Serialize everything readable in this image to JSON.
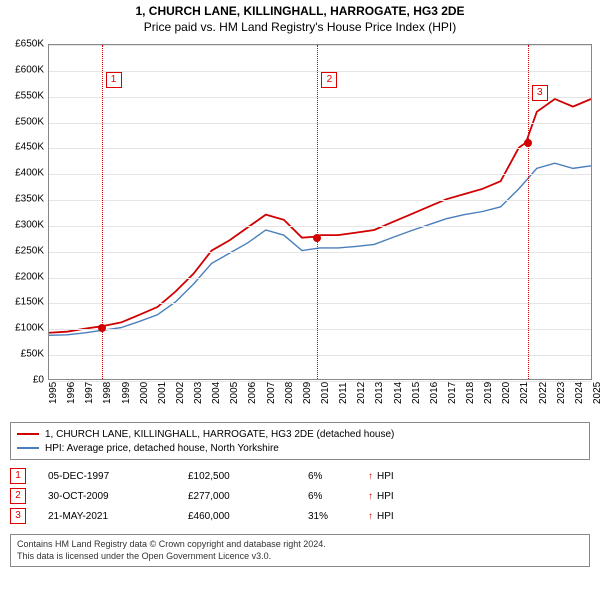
{
  "titles": {
    "main": "1, CHURCH LANE, KILLINGHALL, HARROGATE, HG3 2DE",
    "sub": "Price paid vs. HM Land Registry's House Price Index (HPI)"
  },
  "chart": {
    "type": "line",
    "background_color": "#ffffff",
    "grid_color": "#e5e5e5",
    "border_color": "#888888",
    "x": {
      "min": 1995,
      "max": 2025,
      "ticks": [
        1995,
        1996,
        1997,
        1998,
        1999,
        2000,
        2001,
        2002,
        2003,
        2004,
        2005,
        2006,
        2007,
        2008,
        2009,
        2010,
        2011,
        2012,
        2013,
        2014,
        2015,
        2016,
        2017,
        2018,
        2019,
        2020,
        2021,
        2022,
        2023,
        2024,
        2025
      ]
    },
    "y": {
      "min": 0,
      "max": 650000,
      "tick_step": 50000,
      "tick_labels": [
        "£0",
        "£50K",
        "£100K",
        "£150K",
        "£200K",
        "£250K",
        "£300K",
        "£350K",
        "£400K",
        "£450K",
        "£500K",
        "£550K",
        "£600K",
        "£650K"
      ]
    },
    "series": [
      {
        "name": "1, CHURCH LANE, KILLINGHALL, HARROGATE, HG3 2DE (detached house)",
        "color": "#d00000",
        "line_width": 1.8,
        "points": [
          [
            1995,
            90000
          ],
          [
            1996,
            92000
          ],
          [
            1997,
            98000
          ],
          [
            1997.9,
            102500
          ],
          [
            1999,
            110000
          ],
          [
            2000,
            125000
          ],
          [
            2001,
            140000
          ],
          [
            2002,
            170000
          ],
          [
            2003,
            205000
          ],
          [
            2004,
            250000
          ],
          [
            2005,
            270000
          ],
          [
            2006,
            295000
          ],
          [
            2007,
            320000
          ],
          [
            2008,
            310000
          ],
          [
            2009,
            275000
          ],
          [
            2009.8,
            277000
          ],
          [
            2010,
            280000
          ],
          [
            2011,
            280000
          ],
          [
            2012,
            285000
          ],
          [
            2013,
            290000
          ],
          [
            2014,
            305000
          ],
          [
            2015,
            320000
          ],
          [
            2016,
            335000
          ],
          [
            2017,
            350000
          ],
          [
            2018,
            360000
          ],
          [
            2019,
            370000
          ],
          [
            2020,
            385000
          ],
          [
            2021,
            450000
          ],
          [
            2021.4,
            460000
          ],
          [
            2022,
            520000
          ],
          [
            2023,
            545000
          ],
          [
            2024,
            530000
          ],
          [
            2025,
            545000
          ]
        ]
      },
      {
        "name": "HPI: Average price, detached house, North Yorkshire",
        "color": "#4a7ebb",
        "line_width": 1.4,
        "points": [
          [
            1995,
            85000
          ],
          [
            1996,
            86000
          ],
          [
            1997,
            90000
          ],
          [
            1998,
            95000
          ],
          [
            1999,
            100000
          ],
          [
            2000,
            112000
          ],
          [
            2001,
            125000
          ],
          [
            2002,
            150000
          ],
          [
            2003,
            185000
          ],
          [
            2004,
            225000
          ],
          [
            2005,
            245000
          ],
          [
            2006,
            265000
          ],
          [
            2007,
            290000
          ],
          [
            2008,
            280000
          ],
          [
            2009,
            250000
          ],
          [
            2010,
            255000
          ],
          [
            2011,
            255000
          ],
          [
            2012,
            258000
          ],
          [
            2013,
            262000
          ],
          [
            2014,
            275000
          ],
          [
            2015,
            288000
          ],
          [
            2016,
            300000
          ],
          [
            2017,
            312000
          ],
          [
            2018,
            320000
          ],
          [
            2019,
            326000
          ],
          [
            2020,
            335000
          ],
          [
            2021,
            370000
          ],
          [
            2022,
            410000
          ],
          [
            2023,
            420000
          ],
          [
            2024,
            410000
          ],
          [
            2025,
            415000
          ]
        ]
      }
    ],
    "markers": [
      {
        "n": "1",
        "x": 1997.9,
        "y": 102500,
        "badge_top_pct": 8
      },
      {
        "n": "2",
        "x": 2009.8,
        "y": 277000,
        "badge_top_pct": 8
      },
      {
        "n": "3",
        "x": 2021.4,
        "y": 460000,
        "badge_top_pct": 12
      }
    ],
    "marker_line_color": "#d00000",
    "marker_dot_color": "#d00000"
  },
  "legend": {
    "items": [
      {
        "color": "#d00000",
        "label": "1, CHURCH LANE, KILLINGHALL, HARROGATE, HG3 2DE (detached house)"
      },
      {
        "color": "#4a7ebb",
        "label": "HPI: Average price, detached house, North Yorkshire"
      }
    ]
  },
  "sales": [
    {
      "n": "1",
      "date": "05-DEC-1997",
      "price": "£102,500",
      "pct": "6%",
      "arrow": "↑",
      "suffix": "HPI"
    },
    {
      "n": "2",
      "date": "30-OCT-2009",
      "price": "£277,000",
      "pct": "6%",
      "arrow": "↑",
      "suffix": "HPI"
    },
    {
      "n": "3",
      "date": "21-MAY-2021",
      "price": "£460,000",
      "pct": "31%",
      "arrow": "↑",
      "suffix": "HPI"
    }
  ],
  "footer": {
    "line1": "Contains HM Land Registry data © Crown copyright and database right 2024.",
    "line2": "This data is licensed under the Open Government Licence v3.0."
  }
}
